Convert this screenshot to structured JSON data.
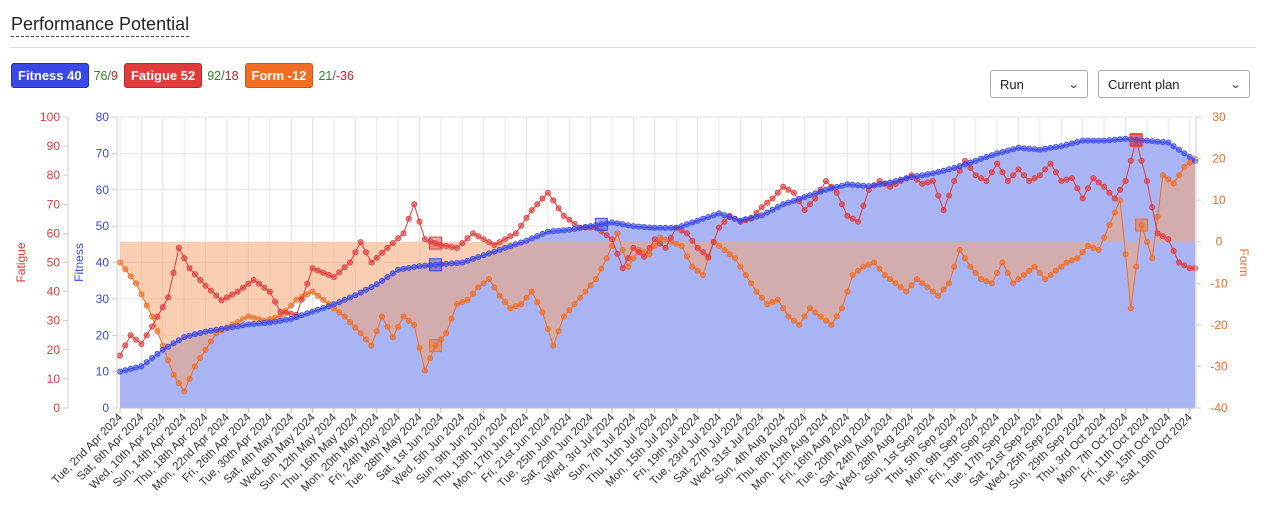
{
  "title": "Performance Potential",
  "badges": {
    "fitness": {
      "label": "Fitness 40",
      "a": "76",
      "b": "9"
    },
    "fatigue": {
      "label": "Fatigue 52",
      "a": "92",
      "b": "18"
    },
    "form": {
      "label": "Form -12",
      "a": "21",
      "b": "-36"
    }
  },
  "controls": {
    "sport": "Run",
    "plan": "Current plan"
  },
  "colors": {
    "fitness": "#3a48e6",
    "fatigue": "#e23b3b",
    "form": "#f36d22",
    "fitness_fill": "#a3b0f3",
    "form_fill": "#f6a674"
  },
  "chart_data": {
    "type": "line",
    "start_date": "2024-04-02",
    "days": 202,
    "axes": {
      "fatigue": {
        "label": "Fatigue",
        "range": [
          0,
          100
        ],
        "ticks": [
          0,
          10,
          20,
          30,
          40,
          50,
          60,
          70,
          80,
          90,
          100
        ]
      },
      "fitness": {
        "label": "Fitness",
        "range": [
          0,
          80
        ],
        "ticks": [
          0,
          10,
          20,
          30,
          40,
          50,
          60,
          70,
          80
        ]
      },
      "form": {
        "label": "Form",
        "range": [
          -40,
          30
        ],
        "ticks": [
          -40,
          -30,
          -20,
          -10,
          0,
          10,
          20,
          30
        ]
      }
    },
    "x_tick_labels": [
      "Tue, 2nd Apr 2024",
      "Sat, 6th Apr 2024",
      "Wed, 10th Apr 2024",
      "Sun, 14th Apr 2024",
      "Thu, 18th Apr 2024",
      "Mon, 22nd Apr 2024",
      "Fri, 26th Apr 2024",
      "Tue, 30th Apr 2024",
      "Sat, 4th May 2024",
      "Wed, 8th May 2024",
      "Sun, 12th May 2024",
      "Thu, 16th May 2024",
      "Mon, 20th May 2024",
      "Fri, 24th May 2024",
      "Tue, 28th May 2024",
      "Sat, 1st Jun 2024",
      "Wed, 5th Jun 2024",
      "Sun, 9th Jun 2024",
      "Thu, 13th Jun 2024",
      "Mon, 17th Jun 2024",
      "Fri, 21st Jun 2024",
      "Tue, 25th Jun 2024",
      "Sat, 29th Jun 2024",
      "Wed, 3rd Jul 2024",
      "Sun, 7th Jul 2024",
      "Thu, 11th Jul 2024",
      "Mon, 15th Jul 2024",
      "Fri, 19th Jul 2024",
      "Tue, 23rd Jul 2024",
      "Sat, 27th Jul 2024",
      "Wed, 31st Jul 2024",
      "Sun, 4th Aug 2024",
      "Thu, 8th Aug 2024",
      "Mon, 12th Aug 2024",
      "Fri, 16th Aug 2024",
      "Tue, 20th Aug 2024",
      "Sat, 24th Aug 2024",
      "Wed, 28th Aug 2024",
      "Sun, 1st Sep 2024",
      "Thu, 5th Sep 2024",
      "Mon, 9th Sep 2024",
      "Fri, 13th Sep 2024",
      "Tue, 17th Sep 2024",
      "Sat, 21st Sep 2024",
      "Wed, 25th Sep 2024",
      "Sun, 29th Sep 2024",
      "Thu, 3rd Oct 2024",
      "Mon, 7th Oct 2024",
      "Fri, 11th Oct 2024",
      "Tue, 15th Oct 2024",
      "Sat, 19th Oct 2024"
    ],
    "series": [
      {
        "name": "Fitness",
        "axis": "fitness",
        "keypoints": [
          [
            0,
            10
          ],
          [
            4,
            11.5
          ],
          [
            8,
            16
          ],
          [
            12,
            19.5
          ],
          [
            16,
            21
          ],
          [
            20,
            22
          ],
          [
            24,
            23
          ],
          [
            28,
            23.5
          ],
          [
            32,
            24.5
          ],
          [
            36,
            26.5
          ],
          [
            40,
            28.5
          ],
          [
            44,
            31
          ],
          [
            48,
            34
          ],
          [
            52,
            38
          ],
          [
            56,
            39
          ],
          [
            60,
            39.5
          ],
          [
            64,
            40
          ],
          [
            68,
            42
          ],
          [
            72,
            44
          ],
          [
            76,
            46
          ],
          [
            80,
            48.5
          ],
          [
            84,
            49
          ],
          [
            88,
            50
          ],
          [
            92,
            51
          ],
          [
            96,
            50
          ],
          [
            100,
            49.5
          ],
          [
            104,
            49.5
          ],
          [
            108,
            51.5
          ],
          [
            112,
            53.5
          ],
          [
            116,
            51.5
          ],
          [
            120,
            53
          ],
          [
            124,
            56
          ],
          [
            128,
            58
          ],
          [
            132,
            60
          ],
          [
            136,
            61.5
          ],
          [
            140,
            61
          ],
          [
            144,
            62
          ],
          [
            148,
            63.5
          ],
          [
            152,
            64.5
          ],
          [
            156,
            66
          ],
          [
            160,
            68
          ],
          [
            164,
            70
          ],
          [
            168,
            71.5
          ],
          [
            172,
            71
          ],
          [
            176,
            72
          ],
          [
            180,
            73.5
          ],
          [
            184,
            73.5
          ],
          [
            188,
            74
          ],
          [
            192,
            73.5
          ],
          [
            196,
            73
          ],
          [
            199,
            70
          ],
          [
            201,
            68
          ]
        ]
      },
      {
        "name": "Fatigue",
        "axis": "fatigue",
        "keypoints": [
          [
            0,
            18
          ],
          [
            2,
            25
          ],
          [
            4,
            22
          ],
          [
            6,
            28
          ],
          [
            9,
            38
          ],
          [
            11,
            55
          ],
          [
            13,
            48
          ],
          [
            16,
            42
          ],
          [
            19,
            37
          ],
          [
            22,
            40
          ],
          [
            25,
            44
          ],
          [
            28,
            40
          ],
          [
            30,
            33
          ],
          [
            33,
            32
          ],
          [
            36,
            48
          ],
          [
            40,
            45
          ],
          [
            43,
            50
          ],
          [
            45,
            57
          ],
          [
            47,
            50
          ],
          [
            50,
            55
          ],
          [
            53,
            60
          ],
          [
            55,
            70
          ],
          [
            57,
            58
          ],
          [
            60,
            56
          ],
          [
            63,
            55
          ],
          [
            66,
            60
          ],
          [
            70,
            56
          ],
          [
            74,
            60
          ],
          [
            77,
            68
          ],
          [
            80,
            74
          ],
          [
            83,
            66
          ],
          [
            86,
            62
          ],
          [
            89,
            62
          ],
          [
            92,
            58
          ],
          [
            94,
            48
          ],
          [
            96,
            55
          ],
          [
            98,
            52
          ],
          [
            100,
            58
          ],
          [
            102,
            55
          ],
          [
            104,
            62
          ],
          [
            106,
            60
          ],
          [
            108,
            55
          ],
          [
            110,
            52
          ],
          [
            112,
            62
          ],
          [
            114,
            66
          ],
          [
            116,
            64
          ],
          [
            118,
            65
          ],
          [
            120,
            69
          ],
          [
            122,
            72
          ],
          [
            124,
            76
          ],
          [
            126,
            74
          ],
          [
            128,
            68
          ],
          [
            130,
            72
          ],
          [
            132,
            78
          ],
          [
            134,
            74
          ],
          [
            136,
            66
          ],
          [
            138,
            64
          ],
          [
            140,
            75
          ],
          [
            142,
            78
          ],
          [
            144,
            76
          ],
          [
            146,
            78
          ],
          [
            148,
            80
          ],
          [
            150,
            77
          ],
          [
            152,
            78
          ],
          [
            154,
            68
          ],
          [
            156,
            78
          ],
          [
            158,
            85
          ],
          [
            160,
            80
          ],
          [
            162,
            78
          ],
          [
            164,
            84
          ],
          [
            166,
            78
          ],
          [
            168,
            82
          ],
          [
            170,
            78
          ],
          [
            172,
            80
          ],
          [
            174,
            84
          ],
          [
            176,
            78
          ],
          [
            178,
            79
          ],
          [
            180,
            72
          ],
          [
            182,
            79
          ],
          [
            184,
            76
          ],
          [
            186,
            72
          ],
          [
            188,
            78
          ],
          [
            190,
            92
          ],
          [
            192,
            78
          ],
          [
            194,
            60
          ],
          [
            196,
            58
          ],
          [
            198,
            50
          ],
          [
            200,
            48
          ]
        ]
      },
      {
        "name": "Form",
        "axis": "form",
        "keypoints": [
          [
            0,
            -5
          ],
          [
            3,
            -10
          ],
          [
            6,
            -18
          ],
          [
            8,
            -25
          ],
          [
            10,
            -32
          ],
          [
            12,
            -36
          ],
          [
            14,
            -30
          ],
          [
            16,
            -26
          ],
          [
            18,
            -22
          ],
          [
            21,
            -20
          ],
          [
            24,
            -18
          ],
          [
            27,
            -19
          ],
          [
            30,
            -18
          ],
          [
            33,
            -14
          ],
          [
            36,
            -12
          ],
          [
            39,
            -15
          ],
          [
            42,
            -18
          ],
          [
            45,
            -22
          ],
          [
            47,
            -25
          ],
          [
            49,
            -18
          ],
          [
            51,
            -23
          ],
          [
            53,
            -18
          ],
          [
            55,
            -20
          ],
          [
            57,
            -31
          ],
          [
            59,
            -25
          ],
          [
            61,
            -22
          ],
          [
            63,
            -15
          ],
          [
            65,
            -14
          ],
          [
            67,
            -11
          ],
          [
            69,
            -9
          ],
          [
            71,
            -13
          ],
          [
            73,
            -16
          ],
          [
            75,
            -15
          ],
          [
            77,
            -12
          ],
          [
            79,
            -17
          ],
          [
            81,
            -25
          ],
          [
            83,
            -18
          ],
          [
            85,
            -15
          ],
          [
            87,
            -12
          ],
          [
            89,
            -9
          ],
          [
            91,
            -4
          ],
          [
            93,
            2
          ],
          [
            95,
            -6
          ],
          [
            97,
            -2
          ],
          [
            99,
            -3
          ],
          [
            101,
            1
          ],
          [
            103,
            0
          ],
          [
            105,
            -1
          ],
          [
            107,
            -6
          ],
          [
            109,
            -8
          ],
          [
            111,
            0
          ],
          [
            113,
            -2
          ],
          [
            115,
            -4
          ],
          [
            117,
            -8
          ],
          [
            119,
            -12
          ],
          [
            121,
            -15
          ],
          [
            123,
            -14
          ],
          [
            125,
            -18
          ],
          [
            127,
            -20
          ],
          [
            129,
            -16
          ],
          [
            131,
            -18
          ],
          [
            133,
            -20
          ],
          [
            135,
            -16
          ],
          [
            137,
            -8
          ],
          [
            139,
            -6
          ],
          [
            141,
            -5
          ],
          [
            143,
            -8
          ],
          [
            145,
            -10
          ],
          [
            147,
            -12
          ],
          [
            149,
            -9
          ],
          [
            151,
            -11
          ],
          [
            153,
            -13
          ],
          [
            155,
            -10
          ],
          [
            157,
            -2
          ],
          [
            159,
            -6
          ],
          [
            161,
            -9
          ],
          [
            163,
            -10
          ],
          [
            165,
            -5
          ],
          [
            167,
            -10
          ],
          [
            169,
            -8
          ],
          [
            171,
            -6
          ],
          [
            173,
            -9
          ],
          [
            175,
            -7
          ],
          [
            177,
            -5
          ],
          [
            179,
            -4
          ],
          [
            181,
            -1
          ],
          [
            183,
            -2
          ],
          [
            185,
            4
          ],
          [
            187,
            10
          ],
          [
            189,
            -16
          ],
          [
            191,
            4
          ],
          [
            193,
            -4
          ],
          [
            195,
            16
          ],
          [
            197,
            14
          ],
          [
            199,
            18
          ],
          [
            201,
            20
          ]
        ]
      }
    ],
    "highlight_markers": [
      {
        "series": "Fitness",
        "day": 59
      },
      {
        "series": "Fitness",
        "day": 90
      },
      {
        "series": "Fitness",
        "day": 190
      },
      {
        "series": "Fatigue",
        "day": 59
      },
      {
        "series": "Fatigue",
        "day": 190
      },
      {
        "series": "Form",
        "day": 59
      },
      {
        "series": "Form",
        "day": 191
      }
    ]
  }
}
